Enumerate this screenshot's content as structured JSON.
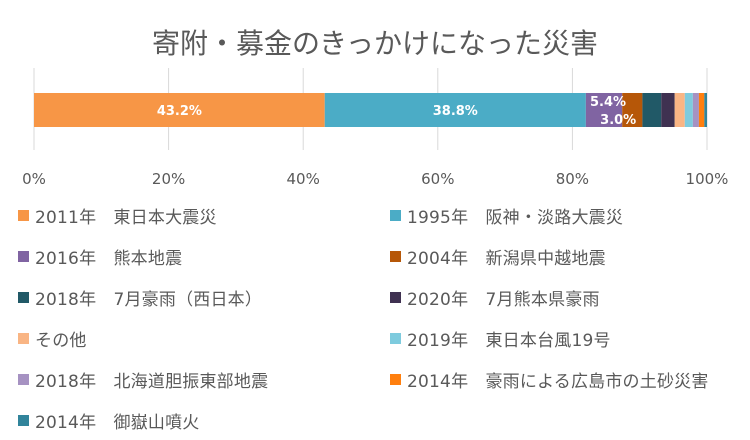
{
  "chart_data": {
    "type": "bar",
    "orientation": "horizontal",
    "stacked": true,
    "title": "寄附・募金のきっかけになった災害",
    "xlim": [
      0,
      100
    ],
    "xticks": [
      "0%",
      "20%",
      "40%",
      "60%",
      "80%",
      "100%"
    ],
    "grid": true,
    "legend_position": "bottom",
    "series": [
      {
        "name": "2011年　東日本大震災",
        "value": 43.2,
        "color": "#F79646",
        "label": "43.2%"
      },
      {
        "name": "1995年　阪神・淡路大震災",
        "value": 38.8,
        "color": "#4BACC6",
        "label": "38.8%"
      },
      {
        "name": "2016年　熊本地震",
        "value": 5.4,
        "color": "#8064A2",
        "label": "5.4%"
      },
      {
        "name": "2004年　新潟県中越地震",
        "value": 3.0,
        "color": "#B65708",
        "label": "3.0%"
      },
      {
        "name": "2018年　7月豪雨（西日本）",
        "value": 2.8,
        "color": "#215967",
        "label": ""
      },
      {
        "name": "2020年　7月熊本県豪雨",
        "value": 2.0,
        "color": "#3F3151",
        "label": ""
      },
      {
        "name": "その他",
        "value": 1.5,
        "color": "#F9B584",
        "label": ""
      },
      {
        "name": "2019年　東日本台風19号",
        "value": 1.2,
        "color": "#7ECBDE",
        "label": ""
      },
      {
        "name": "2018年　北海道胆振東部地震",
        "value": 0.9,
        "color": "#A692C2",
        "label": ""
      },
      {
        "name": "2014年　豪雨による広島市の土砂災害",
        "value": 0.8,
        "color": "#FF7F0E",
        "label": ""
      },
      {
        "name": "2014年　御嶽山噴火",
        "value": 0.4,
        "color": "#31849B",
        "label": ""
      }
    ]
  }
}
